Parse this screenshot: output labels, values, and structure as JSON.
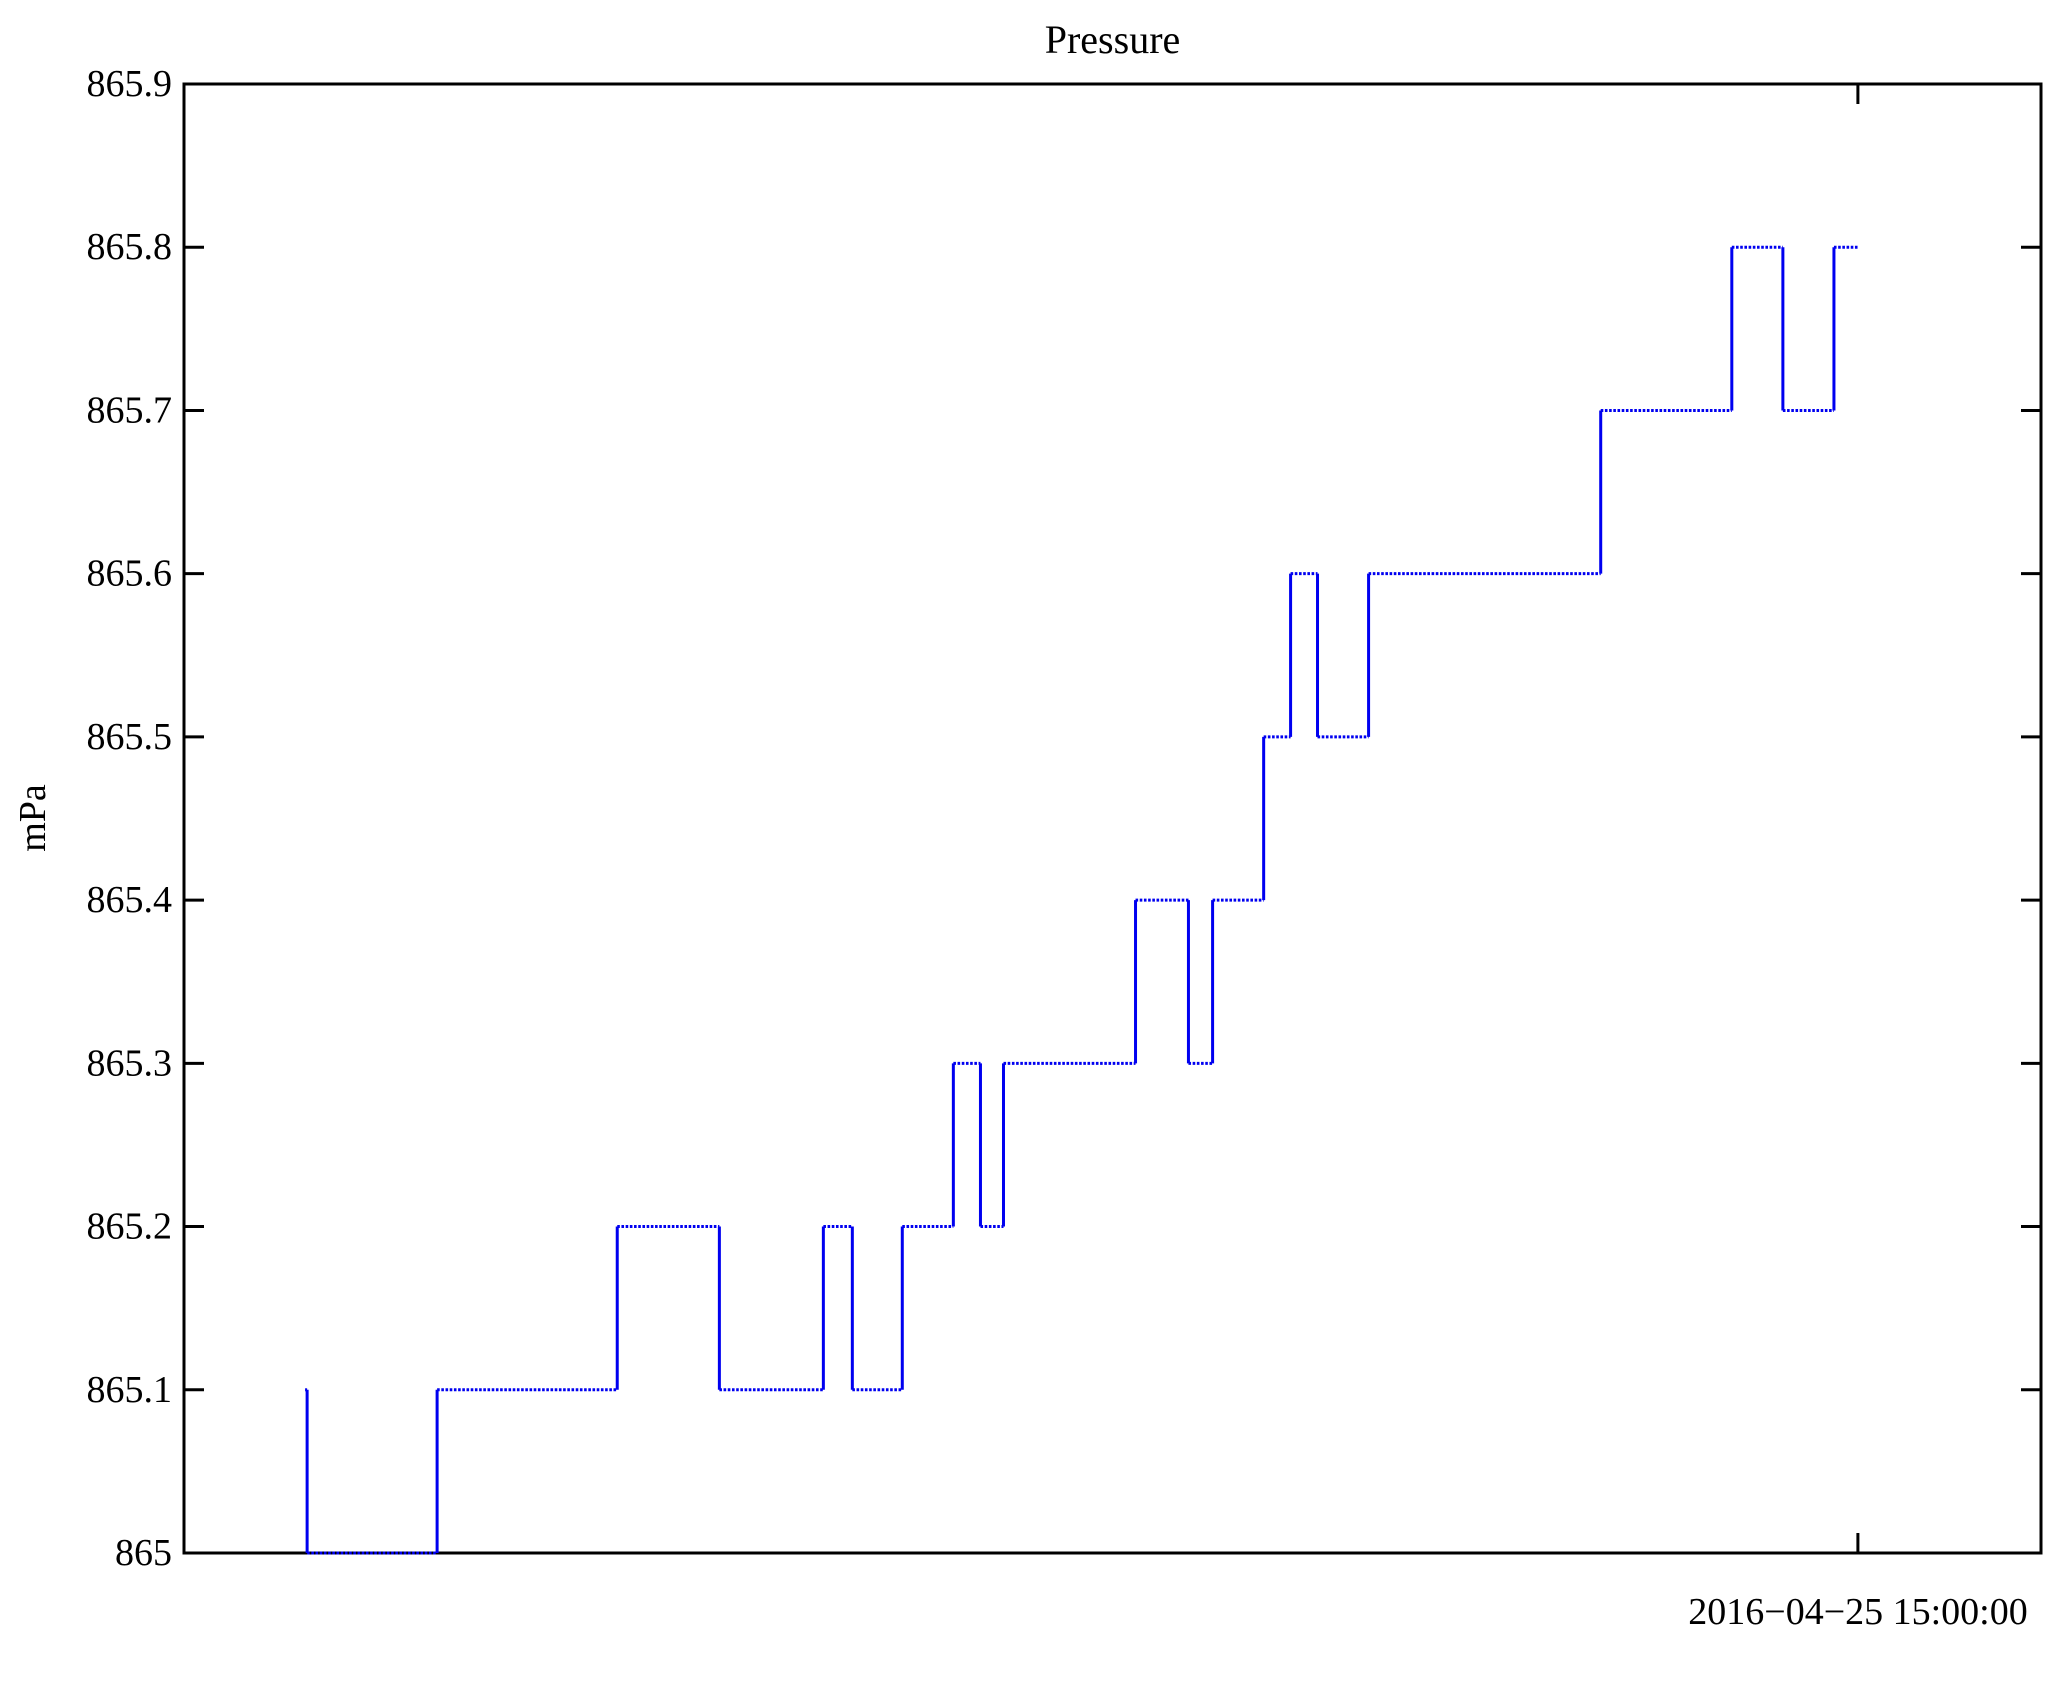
{
  "figure": {
    "title": "Pressure",
    "ylabel": "mPa",
    "xtick_label": "2016−04−25 15:00:00"
  },
  "chart_data": {
    "type": "line",
    "subtype": "step-post",
    "title": "Pressure",
    "xlabel": "",
    "ylabel": "mPa",
    "ylim": [
      865.0,
      865.9
    ],
    "grid": "off",
    "legend": "none",
    "line_color": "#0000f0",
    "line_style": {
      "horizontal_runs": "dotted",
      "vertical_jumps": "solid"
    },
    "y_ticks": {
      "values": [
        865.0,
        865.1,
        865.2,
        865.3,
        865.4,
        865.5,
        865.6,
        865.7,
        865.8,
        865.9
      ],
      "labels": [
        "865",
        "865.1",
        "865.2",
        "865.3",
        "865.4",
        "865.5",
        "865.6",
        "865.7",
        "865.8",
        "865.9"
      ]
    },
    "x_ticks": {
      "fractions": [
        0.9014
      ],
      "labels": [
        "2016−04−25 15:00:00"
      ]
    },
    "series": [
      {
        "name": "Pressure",
        "note": "points are [x_fraction_of_plot_width, mPa_value]; step holds value until next x",
        "points": [
          [
            0.0652,
            865.1
          ],
          [
            0.0663,
            865.0
          ],
          [
            0.1363,
            865.1
          ],
          [
            0.2333,
            865.2
          ],
          [
            0.2883,
            865.1
          ],
          [
            0.3443,
            865.2
          ],
          [
            0.3599,
            865.1
          ],
          [
            0.3868,
            865.2
          ],
          [
            0.4143,
            865.3
          ],
          [
            0.4289,
            865.2
          ],
          [
            0.4413,
            865.3
          ],
          [
            0.5124,
            865.4
          ],
          [
            0.5409,
            865.3
          ],
          [
            0.5539,
            865.4
          ],
          [
            0.5814,
            865.5
          ],
          [
            0.5959,
            865.6
          ],
          [
            0.6104,
            865.5
          ],
          [
            0.6379,
            865.6
          ],
          [
            0.7629,
            865.7
          ],
          [
            0.8335,
            865.8
          ],
          [
            0.861,
            865.7
          ],
          [
            0.8885,
            865.8
          ],
          [
            0.9014,
            865.8
          ]
        ]
      }
    ]
  }
}
